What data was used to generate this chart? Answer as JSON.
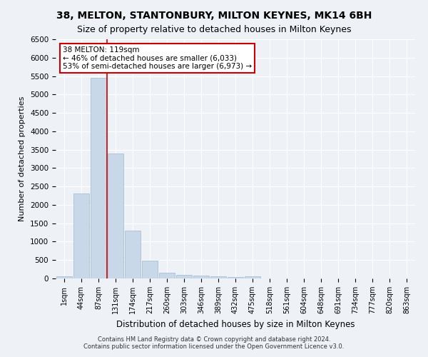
{
  "title": "38, MELTON, STANTONBURY, MILTON KEYNES, MK14 6BH",
  "subtitle": "Size of property relative to detached houses in Milton Keynes",
  "xlabel": "Distribution of detached houses by size in Milton Keynes",
  "ylabel": "Number of detached properties",
  "footnote1": "Contains HM Land Registry data © Crown copyright and database right 2024.",
  "footnote2": "Contains public sector information licensed under the Open Government Licence v3.0.",
  "categories": [
    "1sqm",
    "44sqm",
    "87sqm",
    "131sqm",
    "174sqm",
    "217sqm",
    "260sqm",
    "303sqm",
    "346sqm",
    "389sqm",
    "432sqm",
    "475sqm",
    "518sqm",
    "561sqm",
    "604sqm",
    "648sqm",
    "691sqm",
    "734sqm",
    "777sqm",
    "820sqm",
    "863sqm"
  ],
  "values": [
    60,
    2300,
    5450,
    3400,
    1300,
    480,
    160,
    100,
    80,
    60,
    40,
    50,
    0,
    0,
    0,
    0,
    0,
    0,
    0,
    0,
    0
  ],
  "bar_color": "#c8d8e8",
  "bar_edge_color": "#a0b8d0",
  "marker_label": "38 MELTON: 119sqm",
  "annotation_line1": "← 46% of detached houses are smaller (6,033)",
  "annotation_line2": "53% of semi-detached houses are larger (6,973) →",
  "ylim": [
    0,
    6500
  ],
  "yticks": [
    0,
    500,
    1000,
    1500,
    2000,
    2500,
    3000,
    3500,
    4000,
    4500,
    5000,
    5500,
    6000,
    6500
  ],
  "background_color": "#eef2f7",
  "grid_color": "#ffffff",
  "annotation_box_color": "#ffffff",
  "annotation_box_edge": "#cc0000",
  "marker_line_color": "#cc0000",
  "title_fontsize": 10,
  "subtitle_fontsize": 9,
  "xlabel_fontsize": 8.5,
  "ylabel_fontsize": 8
}
